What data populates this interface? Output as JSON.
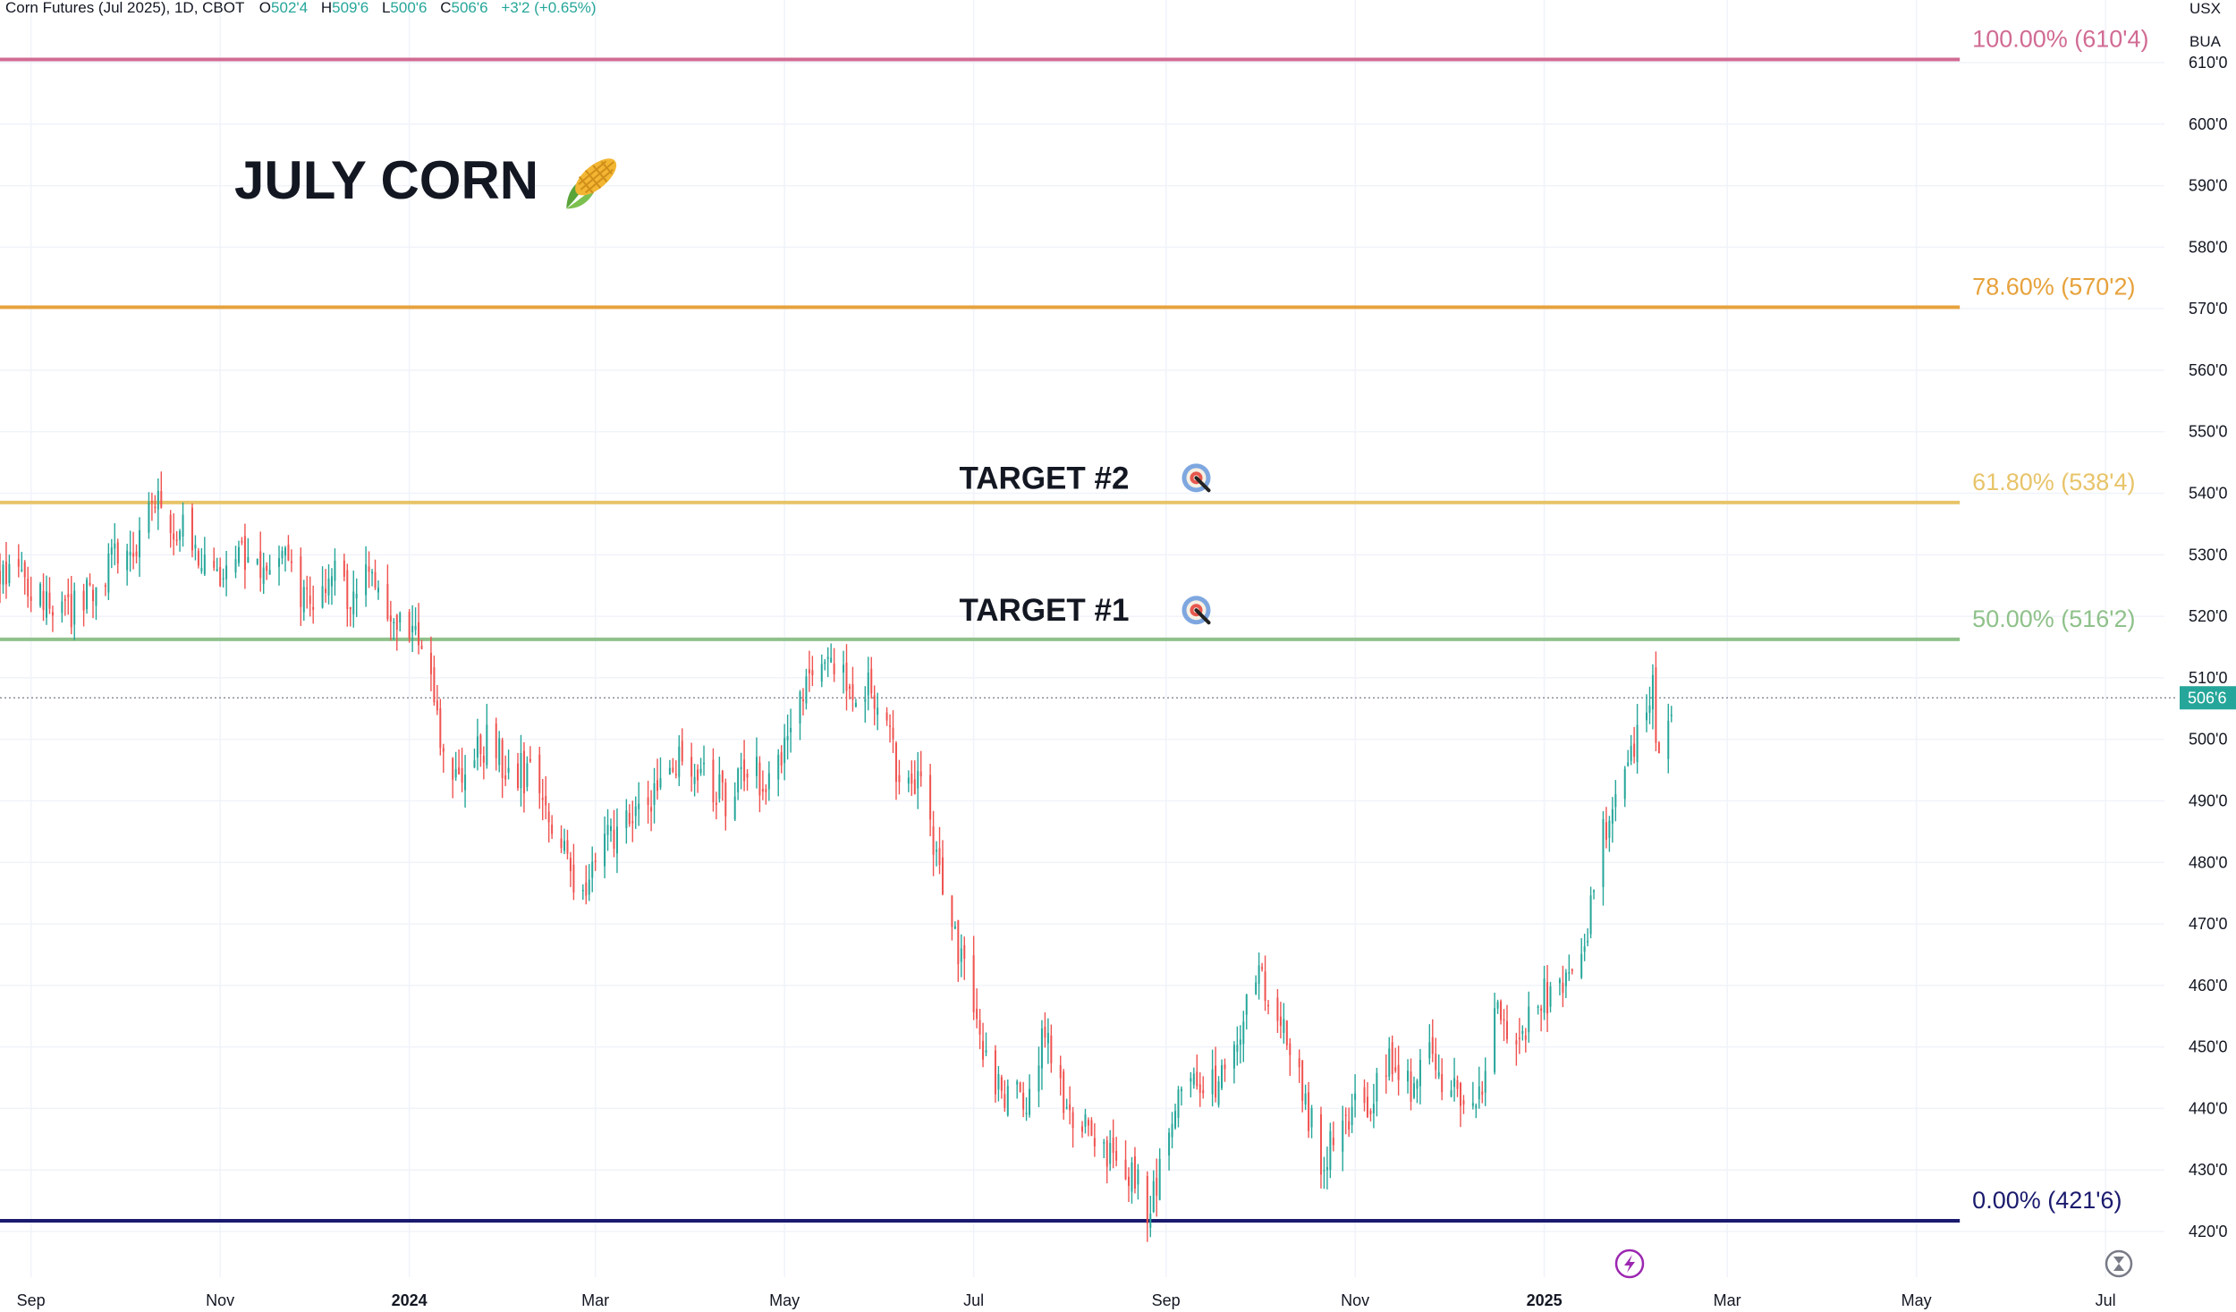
{
  "header": {
    "symbol": "Corn Futures (Jul 2025), 1D, CBOT",
    "open_label": "O",
    "open": "502'4",
    "high_label": "H",
    "high": "509'6",
    "low_label": "L",
    "low": "500'6",
    "close_label": "C",
    "close": "506'6",
    "change": "+3'2 (+0.65%)"
  },
  "units": {
    "currency": "USX",
    "unit": "BUA"
  },
  "colors": {
    "up": "#26a69a",
    "down": "#ef5350",
    "fib_100": "#d16b93",
    "fib_786": "#e7a23c",
    "fib_618": "#e8c46a",
    "fib_50": "#8fc18a",
    "fib_0": "#1a1a6e",
    "price_badge": "#26a69a"
  },
  "icons": {
    "title": "corn-icon",
    "target": "target-icon",
    "flash": "lightning-icon",
    "replay": "hourglass-icon"
  },
  "chart_data": {
    "type": "candlestick",
    "title": "JULY CORN",
    "ylim": [
      418,
      613
    ],
    "yticks": [
      420,
      430,
      440,
      450,
      460,
      470,
      480,
      490,
      500,
      510,
      520,
      530,
      540,
      550,
      560,
      570,
      580,
      590,
      600,
      610
    ],
    "ytick_labels": [
      "420'0",
      "430'0",
      "440'0",
      "450'0",
      "460'0",
      "470'0",
      "480'0",
      "490'0",
      "500'0",
      "510'0",
      "520'0",
      "530'0",
      "540'0",
      "550'0",
      "560'0",
      "570'0",
      "580'0",
      "590'0",
      "600'0",
      "610'0"
    ],
    "xlim": [
      "2023-08-22",
      "2025-07-20"
    ],
    "xticks": [
      {
        "date": "2023-09-01",
        "label": "Sep"
      },
      {
        "date": "2023-11-01",
        "label": "Nov"
      },
      {
        "date": "2024-01-01",
        "label": "2024"
      },
      {
        "date": "2024-03-01",
        "label": "Mar"
      },
      {
        "date": "2024-05-01",
        "label": "May"
      },
      {
        "date": "2024-07-01",
        "label": "Jul"
      },
      {
        "date": "2024-09-01",
        "label": "Sep"
      },
      {
        "date": "2024-11-01",
        "label": "Nov"
      },
      {
        "date": "2025-01-01",
        "label": "2025"
      },
      {
        "date": "2025-03-01",
        "label": "Mar"
      },
      {
        "date": "2025-05-01",
        "label": "May"
      },
      {
        "date": "2025-07-01",
        "label": "Jul"
      }
    ],
    "fib_levels": [
      {
        "label": "100.00% (610'4)",
        "value": 610.5,
        "color": "#d16b93"
      },
      {
        "label": "78.60% (570'2)",
        "value": 570.25,
        "color": "#e7a23c"
      },
      {
        "label": "61.80% (538'4)",
        "value": 538.5,
        "color": "#e8c46a"
      },
      {
        "label": "50.00% (516'2)",
        "value": 516.25,
        "color": "#8fc18a"
      },
      {
        "label": "0.00% (421'6)",
        "value": 421.75,
        "color": "#1a1a6e"
      }
    ],
    "fib_end_date": "2025-05-15",
    "last_price": 506.75,
    "last_price_label": "506'6",
    "annotations": [
      {
        "text": "TARGET #2",
        "value": 542.5,
        "date": "2024-09-05"
      },
      {
        "text": "TARGET #1",
        "value": 521,
        "date": "2024-09-05"
      }
    ],
    "close_path": [
      [
        "2023-08-22",
        527
      ],
      [
        "2023-09-01",
        525
      ],
      [
        "2023-09-15",
        521
      ],
      [
        "2023-09-29",
        529
      ],
      [
        "2023-10-06",
        533
      ],
      [
        "2023-10-13",
        538
      ],
      [
        "2023-10-18",
        535
      ],
      [
        "2023-10-25",
        528
      ],
      [
        "2023-11-01",
        526
      ],
      [
        "2023-11-08",
        531
      ],
      [
        "2023-11-15",
        525
      ],
      [
        "2023-11-22",
        530
      ],
      [
        "2023-11-29",
        523
      ],
      [
        "2023-12-06",
        527
      ],
      [
        "2023-12-13",
        522
      ],
      [
        "2023-12-20",
        527
      ],
      [
        "2023-12-27",
        519
      ],
      [
        "2024-01-03",
        515
      ],
      [
        "2024-01-10",
        506
      ],
      [
        "2024-01-12",
        497
      ],
      [
        "2024-01-19",
        496
      ],
      [
        "2024-01-26",
        499
      ],
      [
        "2024-02-02",
        496
      ],
      [
        "2024-02-09",
        493
      ],
      [
        "2024-02-16",
        485
      ],
      [
        "2024-02-23",
        477
      ],
      [
        "2024-02-26",
        473
      ],
      [
        "2024-03-01",
        480
      ],
      [
        "2024-03-08",
        485
      ],
      [
        "2024-03-15",
        489
      ],
      [
        "2024-03-22",
        493
      ],
      [
        "2024-03-29",
        497
      ],
      [
        "2024-04-05",
        495
      ],
      [
        "2024-04-12",
        490
      ],
      [
        "2024-04-19",
        496
      ],
      [
        "2024-04-26",
        492
      ],
      [
        "2024-05-03",
        502
      ],
      [
        "2024-05-10",
        509
      ],
      [
        "2024-05-15",
        514
      ],
      [
        "2024-05-21",
        508
      ],
      [
        "2024-05-28",
        508
      ],
      [
        "2024-06-04",
        500
      ],
      [
        "2024-06-07",
        490
      ],
      [
        "2024-06-14",
        494
      ],
      [
        "2024-06-21",
        475
      ],
      [
        "2024-06-28",
        462
      ],
      [
        "2024-07-03",
        450
      ],
      [
        "2024-07-10",
        443
      ],
      [
        "2024-07-17",
        441
      ],
      [
        "2024-07-24",
        451
      ],
      [
        "2024-07-31",
        440
      ],
      [
        "2024-08-07",
        438
      ],
      [
        "2024-08-14",
        433
      ],
      [
        "2024-08-21",
        428
      ],
      [
        "2024-08-27",
        424
      ],
      [
        "2024-09-03",
        440
      ],
      [
        "2024-09-10",
        447
      ],
      [
        "2024-09-17",
        443
      ],
      [
        "2024-09-24",
        449
      ],
      [
        "2024-10-01",
        463
      ],
      [
        "2024-10-08",
        454
      ],
      [
        "2024-10-15",
        442
      ],
      [
        "2024-10-22",
        430
      ],
      [
        "2024-10-29",
        440
      ],
      [
        "2024-11-05",
        440
      ],
      [
        "2024-11-12",
        448
      ],
      [
        "2024-11-19",
        444
      ],
      [
        "2024-11-26",
        449
      ],
      [
        "2024-12-03",
        442
      ],
      [
        "2024-12-10",
        440
      ],
      [
        "2024-12-17",
        455
      ],
      [
        "2024-12-24",
        452
      ],
      [
        "2024-12-31",
        457
      ],
      [
        "2025-01-07",
        462
      ],
      [
        "2025-01-14",
        468
      ],
      [
        "2025-01-17",
        475
      ],
      [
        "2025-01-21",
        487
      ],
      [
        "2025-01-24",
        493
      ],
      [
        "2025-01-28",
        494
      ],
      [
        "2025-01-31",
        500
      ],
      [
        "2025-02-05",
        508
      ],
      [
        "2025-02-07",
        495
      ],
      [
        "2025-02-10",
        503
      ],
      [
        "2025-02-11",
        506.75
      ]
    ]
  }
}
